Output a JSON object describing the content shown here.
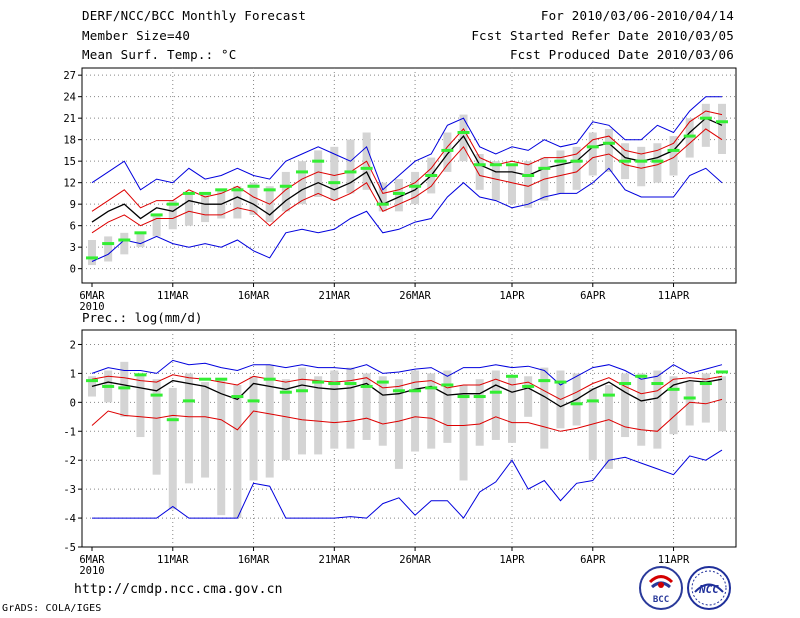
{
  "header": {
    "title": "DERF/NCC/BCC Monthly Forecast",
    "member_size": "Member Size=40",
    "variable": "Mean Surf. Temp.: °C",
    "period": "For 2010/03/06-2010/04/14",
    "started": "Fcst Started Refer Date 2010/03/05",
    "produced": "Fcst Produced Date 2010/03/06"
  },
  "footer": {
    "url": "http://cmdp.ncc.cma.gov.cn",
    "grads": "GrADS: COLA/IGES",
    "logo_bcc": "BCC",
    "logo_ncc": "NCC"
  },
  "colors": {
    "ensemble_mean": "#000000",
    "spread_band": "#dd0000",
    "extremes": "#0000dd",
    "observed_bar": "#d4d4d4",
    "member_mark": "#33ee33",
    "grid": "#888888"
  },
  "chart_data": [
    {
      "type": "line",
      "title": "Mean Surf. Temp.: °C",
      "ylim": [
        -2,
        28
      ],
      "yticks": [
        0,
        3,
        6,
        9,
        12,
        15,
        18,
        21,
        24,
        27
      ],
      "xrange": [
        0,
        39
      ],
      "xticks": [
        {
          "i": 0,
          "label": "6MAR",
          "label2": "2010"
        },
        {
          "i": 5,
          "label": "11MAR"
        },
        {
          "i": 10,
          "label": "16MAR"
        },
        {
          "i": 15,
          "label": "21MAR"
        },
        {
          "i": 20,
          "label": "26MAR"
        },
        {
          "i": 26,
          "label": "1APR"
        },
        {
          "i": 31,
          "label": "6APR"
        },
        {
          "i": 36,
          "label": "11APR"
        }
      ],
      "series": [
        {
          "name": "max",
          "color": "#0000dd",
          "values": [
            12,
            13.5,
            15,
            11,
            12.5,
            12,
            14,
            12.5,
            13,
            14,
            13,
            12.5,
            15,
            16,
            17,
            16,
            15,
            17,
            11,
            13,
            15,
            16,
            20,
            21,
            17,
            16,
            17,
            16.5,
            18,
            17,
            17.5,
            20.5,
            20,
            18,
            18,
            20,
            19,
            22,
            24,
            24
          ]
        },
        {
          "name": "upper",
          "color": "#dd0000",
          "values": [
            8,
            9.5,
            11,
            8.5,
            9.5,
            9.5,
            11,
            10,
            10.5,
            11.5,
            10,
            9,
            11,
            12.5,
            13.5,
            13,
            13.5,
            15,
            10.5,
            11,
            12,
            14,
            17,
            19.5,
            15.5,
            14.5,
            15,
            14.5,
            15.5,
            15.5,
            16,
            18,
            18.5,
            16.5,
            16,
            16.5,
            17.5,
            20.5,
            22,
            21.5
          ]
        },
        {
          "name": "mean",
          "color": "#000000",
          "values": [
            6.5,
            8,
            9,
            7,
            8.5,
            8,
            9.5,
            9,
            9,
            10,
            9,
            7.5,
            9.5,
            11,
            12,
            11,
            12,
            13.5,
            9,
            10,
            11,
            13,
            16,
            18.5,
            14.5,
            13.5,
            13.5,
            13,
            14,
            14.5,
            15,
            17,
            17.5,
            15.5,
            15,
            15.5,
            16.5,
            19,
            21,
            20
          ]
        },
        {
          "name": "lower",
          "color": "#dd0000",
          "values": [
            5,
            6.5,
            7.5,
            6,
            7,
            7,
            8,
            7.5,
            7.5,
            8.5,
            8,
            6,
            8,
            9.5,
            10.5,
            9.5,
            10.5,
            12,
            8,
            9,
            10,
            11.5,
            14.5,
            17,
            13,
            12.5,
            12,
            11.5,
            12.5,
            13,
            13.5,
            15.5,
            16,
            14.5,
            14,
            14.5,
            15.5,
            17.5,
            19.5,
            18
          ]
        },
        {
          "name": "min",
          "color": "#0000dd",
          "values": [
            1,
            2,
            4,
            3.5,
            4.5,
            3.5,
            3,
            3.5,
            3,
            4,
            2.5,
            1.5,
            5,
            5.5,
            5,
            5.5,
            7,
            8,
            5,
            5.5,
            6.5,
            7,
            10,
            12,
            10,
            9.5,
            8.5,
            9,
            10,
            10.5,
            10.5,
            12,
            14,
            11,
            10,
            10,
            10,
            13,
            14,
            12
          ]
        }
      ],
      "bars": [
        [
          0.5,
          4
        ],
        [
          1,
          4.5
        ],
        [
          2,
          5
        ],
        [
          3,
          5
        ],
        [
          4.5,
          7.5
        ],
        [
          5.5,
          9.5
        ],
        [
          6,
          10.5
        ],
        [
          6.5,
          10.5
        ],
        [
          7,
          11
        ],
        [
          7,
          11.5
        ],
        [
          7.5,
          12
        ],
        [
          6.5,
          11.5
        ],
        [
          8,
          13.5
        ],
        [
          9,
          15
        ],
        [
          10,
          16.5
        ],
        [
          9.5,
          17
        ],
        [
          10.5,
          18
        ],
        [
          11,
          19
        ],
        [
          8,
          12
        ],
        [
          8,
          12.5
        ],
        [
          9,
          13.5
        ],
        [
          10.5,
          15.5
        ],
        [
          13.5,
          19
        ],
        [
          15,
          21.5
        ],
        [
          11,
          16
        ],
        [
          9.5,
          15
        ],
        [
          9,
          14.5
        ],
        [
          8.5,
          15
        ],
        [
          9.5,
          15.5
        ],
        [
          10.5,
          16.5
        ],
        [
          11,
          17
        ],
        [
          13,
          19
        ],
        [
          13.5,
          19.5
        ],
        [
          12.5,
          17.5
        ],
        [
          11.5,
          17
        ],
        [
          12,
          17.5
        ],
        [
          13,
          18.5
        ],
        [
          15.5,
          21
        ],
        [
          17,
          23
        ],
        [
          16,
          23
        ]
      ],
      "marks": [
        1.5,
        3.5,
        4,
        5,
        7.5,
        9,
        10.5,
        10.5,
        11,
        11,
        11.5,
        11,
        11.5,
        13.5,
        15,
        12,
        13.5,
        14,
        9,
        10.5,
        11.5,
        13,
        16.5,
        19,
        14.5,
        14.5,
        14.5,
        13,
        14,
        15,
        15,
        17,
        17.5,
        15,
        15,
        15,
        16.5,
        18.5,
        21,
        20.5
      ]
    },
    {
      "type": "line",
      "title": "Prec.: log(mm/d)",
      "ylim": [
        -5,
        2.5
      ],
      "yticks": [
        -5,
        -4,
        -3,
        -2,
        -1,
        0,
        1,
        2
      ],
      "xrange": [
        0,
        39
      ],
      "xticks": [
        {
          "i": 0,
          "label": "6MAR",
          "label2": "2010"
        },
        {
          "i": 5,
          "label": "11MAR"
        },
        {
          "i": 10,
          "label": "16MAR"
        },
        {
          "i": 15,
          "label": "21MAR"
        },
        {
          "i": 20,
          "label": "26MAR"
        },
        {
          "i": 26,
          "label": "1APR"
        },
        {
          "i": 31,
          "label": "6APR"
        },
        {
          "i": 36,
          "label": "11APR"
        }
      ],
      "series": [
        {
          "name": "max",
          "color": "#0000dd",
          "values": [
            1,
            1.2,
            1.1,
            1.1,
            1.0,
            1.45,
            1.3,
            1.35,
            1.2,
            1.1,
            1.3,
            1.3,
            1.2,
            1.3,
            1.2,
            1.2,
            1.15,
            1.3,
            1.0,
            1.05,
            1.15,
            1.2,
            0.9,
            1.2,
            1.2,
            1.3,
            1.2,
            1.25,
            1.1,
            0.6,
            0.9,
            1.2,
            1.3,
            1.1,
            0.8,
            0.9,
            1.3,
            1.0,
            1.15,
            1.3
          ]
        },
        {
          "name": "upper",
          "color": "#dd0000",
          "values": [
            0.8,
            0.9,
            0.85,
            0.75,
            0.7,
            0.95,
            0.85,
            0.8,
            0.7,
            0.6,
            0.9,
            0.8,
            0.7,
            0.8,
            0.75,
            0.7,
            0.75,
            0.85,
            0.5,
            0.55,
            0.7,
            0.75,
            0.5,
            0.6,
            0.6,
            0.8,
            0.6,
            0.7,
            0.4,
            0.1,
            0.35,
            0.65,
            0.85,
            0.55,
            0.3,
            0.4,
            0.8,
            0.85,
            0.8,
            0.9
          ]
        },
        {
          "name": "mean",
          "color": "#000000",
          "values": [
            0.55,
            0.7,
            0.6,
            0.5,
            0.4,
            0.75,
            0.65,
            0.55,
            0.3,
            0.1,
            0.65,
            0.55,
            0.45,
            0.6,
            0.5,
            0.45,
            0.5,
            0.65,
            0.25,
            0.3,
            0.45,
            0.55,
            0.25,
            0.3,
            0.3,
            0.6,
            0.35,
            0.5,
            0.2,
            -0.15,
            0.1,
            0.45,
            0.7,
            0.35,
            0.05,
            0.15,
            0.6,
            0.75,
            0.7,
            0.8
          ]
        },
        {
          "name": "lower",
          "color": "#dd0000",
          "values": [
            -0.8,
            -0.3,
            -0.45,
            -0.5,
            -0.55,
            -0.45,
            -0.5,
            -0.5,
            -0.6,
            -0.95,
            -0.3,
            -0.4,
            -0.5,
            -0.6,
            -0.65,
            -0.7,
            -0.65,
            -0.55,
            -0.75,
            -0.65,
            -0.5,
            -0.55,
            -0.8,
            -0.8,
            -0.75,
            -0.5,
            -0.7,
            -0.7,
            -0.85,
            -1.0,
            -0.9,
            -0.75,
            -0.6,
            -0.85,
            -0.95,
            -1.0,
            -0.5,
            0.0,
            -0.05,
            0.1
          ]
        },
        {
          "name": "min",
          "color": "#0000dd",
          "values": [
            -4,
            -4,
            -4,
            -4,
            -4,
            -3.6,
            -4,
            -4,
            -4,
            -4,
            -2.8,
            -2.9,
            -4,
            -4,
            -4,
            -4,
            -3.95,
            -4,
            -3.5,
            -3.3,
            -3.9,
            -3.4,
            -3.4,
            -4,
            -3.1,
            -2.75,
            -2.0,
            -3.0,
            -2.7,
            -3.4,
            -2.8,
            -2.7,
            -2.0,
            -1.9,
            -2.1,
            -2.3,
            -2.5,
            -1.85,
            -2.0,
            -1.65
          ]
        }
      ],
      "bars": [
        [
          0.2,
          0.9
        ],
        [
          0,
          1.1
        ],
        [
          -0.5,
          1.4
        ],
        [
          -1.2,
          1.0
        ],
        [
          -2.5,
          0.8
        ],
        [
          -3.7,
          0.5
        ],
        [
          -2.8,
          1.0
        ],
        [
          -2.6,
          0.7
        ],
        [
          -3.9,
          0.8
        ],
        [
          -4.0,
          0.6
        ],
        [
          -2.7,
          0.9
        ],
        [
          -2.6,
          1.3
        ],
        [
          -2.0,
          0.8
        ],
        [
          -1.8,
          1.2
        ],
        [
          -1.8,
          0.9
        ],
        [
          -1.6,
          1.1
        ],
        [
          -1.6,
          1.2
        ],
        [
          -1.3,
          1.0
        ],
        [
          -1.5,
          0.9
        ],
        [
          -2.3,
          0.8
        ],
        [
          -1.7,
          1.1
        ],
        [
          -1.6,
          1.0
        ],
        [
          -1.4,
          1.1
        ],
        [
          -2.7,
          0.6
        ],
        [
          -1.5,
          0.8
        ],
        [
          -1.3,
          1.1
        ],
        [
          -1.4,
          0.9
        ],
        [
          -0.5,
          0.9
        ],
        [
          -1.6,
          1.2
        ],
        [
          -0.9,
          1.1
        ],
        [
          -0.8,
          1.0
        ],
        [
          -2.0,
          0.5
        ],
        [
          -2.3,
          0.6
        ],
        [
          -1.2,
          1.0
        ],
        [
          -1.5,
          1.0
        ],
        [
          -1.6,
          1.1
        ],
        [
          -1.1,
          0.9
        ],
        [
          -0.8,
          0.7
        ],
        [
          -0.7,
          1.0
        ],
        [
          -1.0,
          0.9
        ]
      ],
      "marks": [
        0.75,
        0.55,
        0.5,
        0.95,
        0.25,
        -0.6,
        0.05,
        0.8,
        0.8,
        0.2,
        0.05,
        0.8,
        0.35,
        0.4,
        0.7,
        0.65,
        0.65,
        0.55,
        0.7,
        0.4,
        0.4,
        0.5,
        0.6,
        0.2,
        0.2,
        0.35,
        0.9,
        0.55,
        0.75,
        0.7,
        -0.05,
        0.05,
        0.25,
        0.65,
        0.9,
        0.65,
        0.45,
        0.15,
        0.65,
        1.05
      ]
    }
  ]
}
